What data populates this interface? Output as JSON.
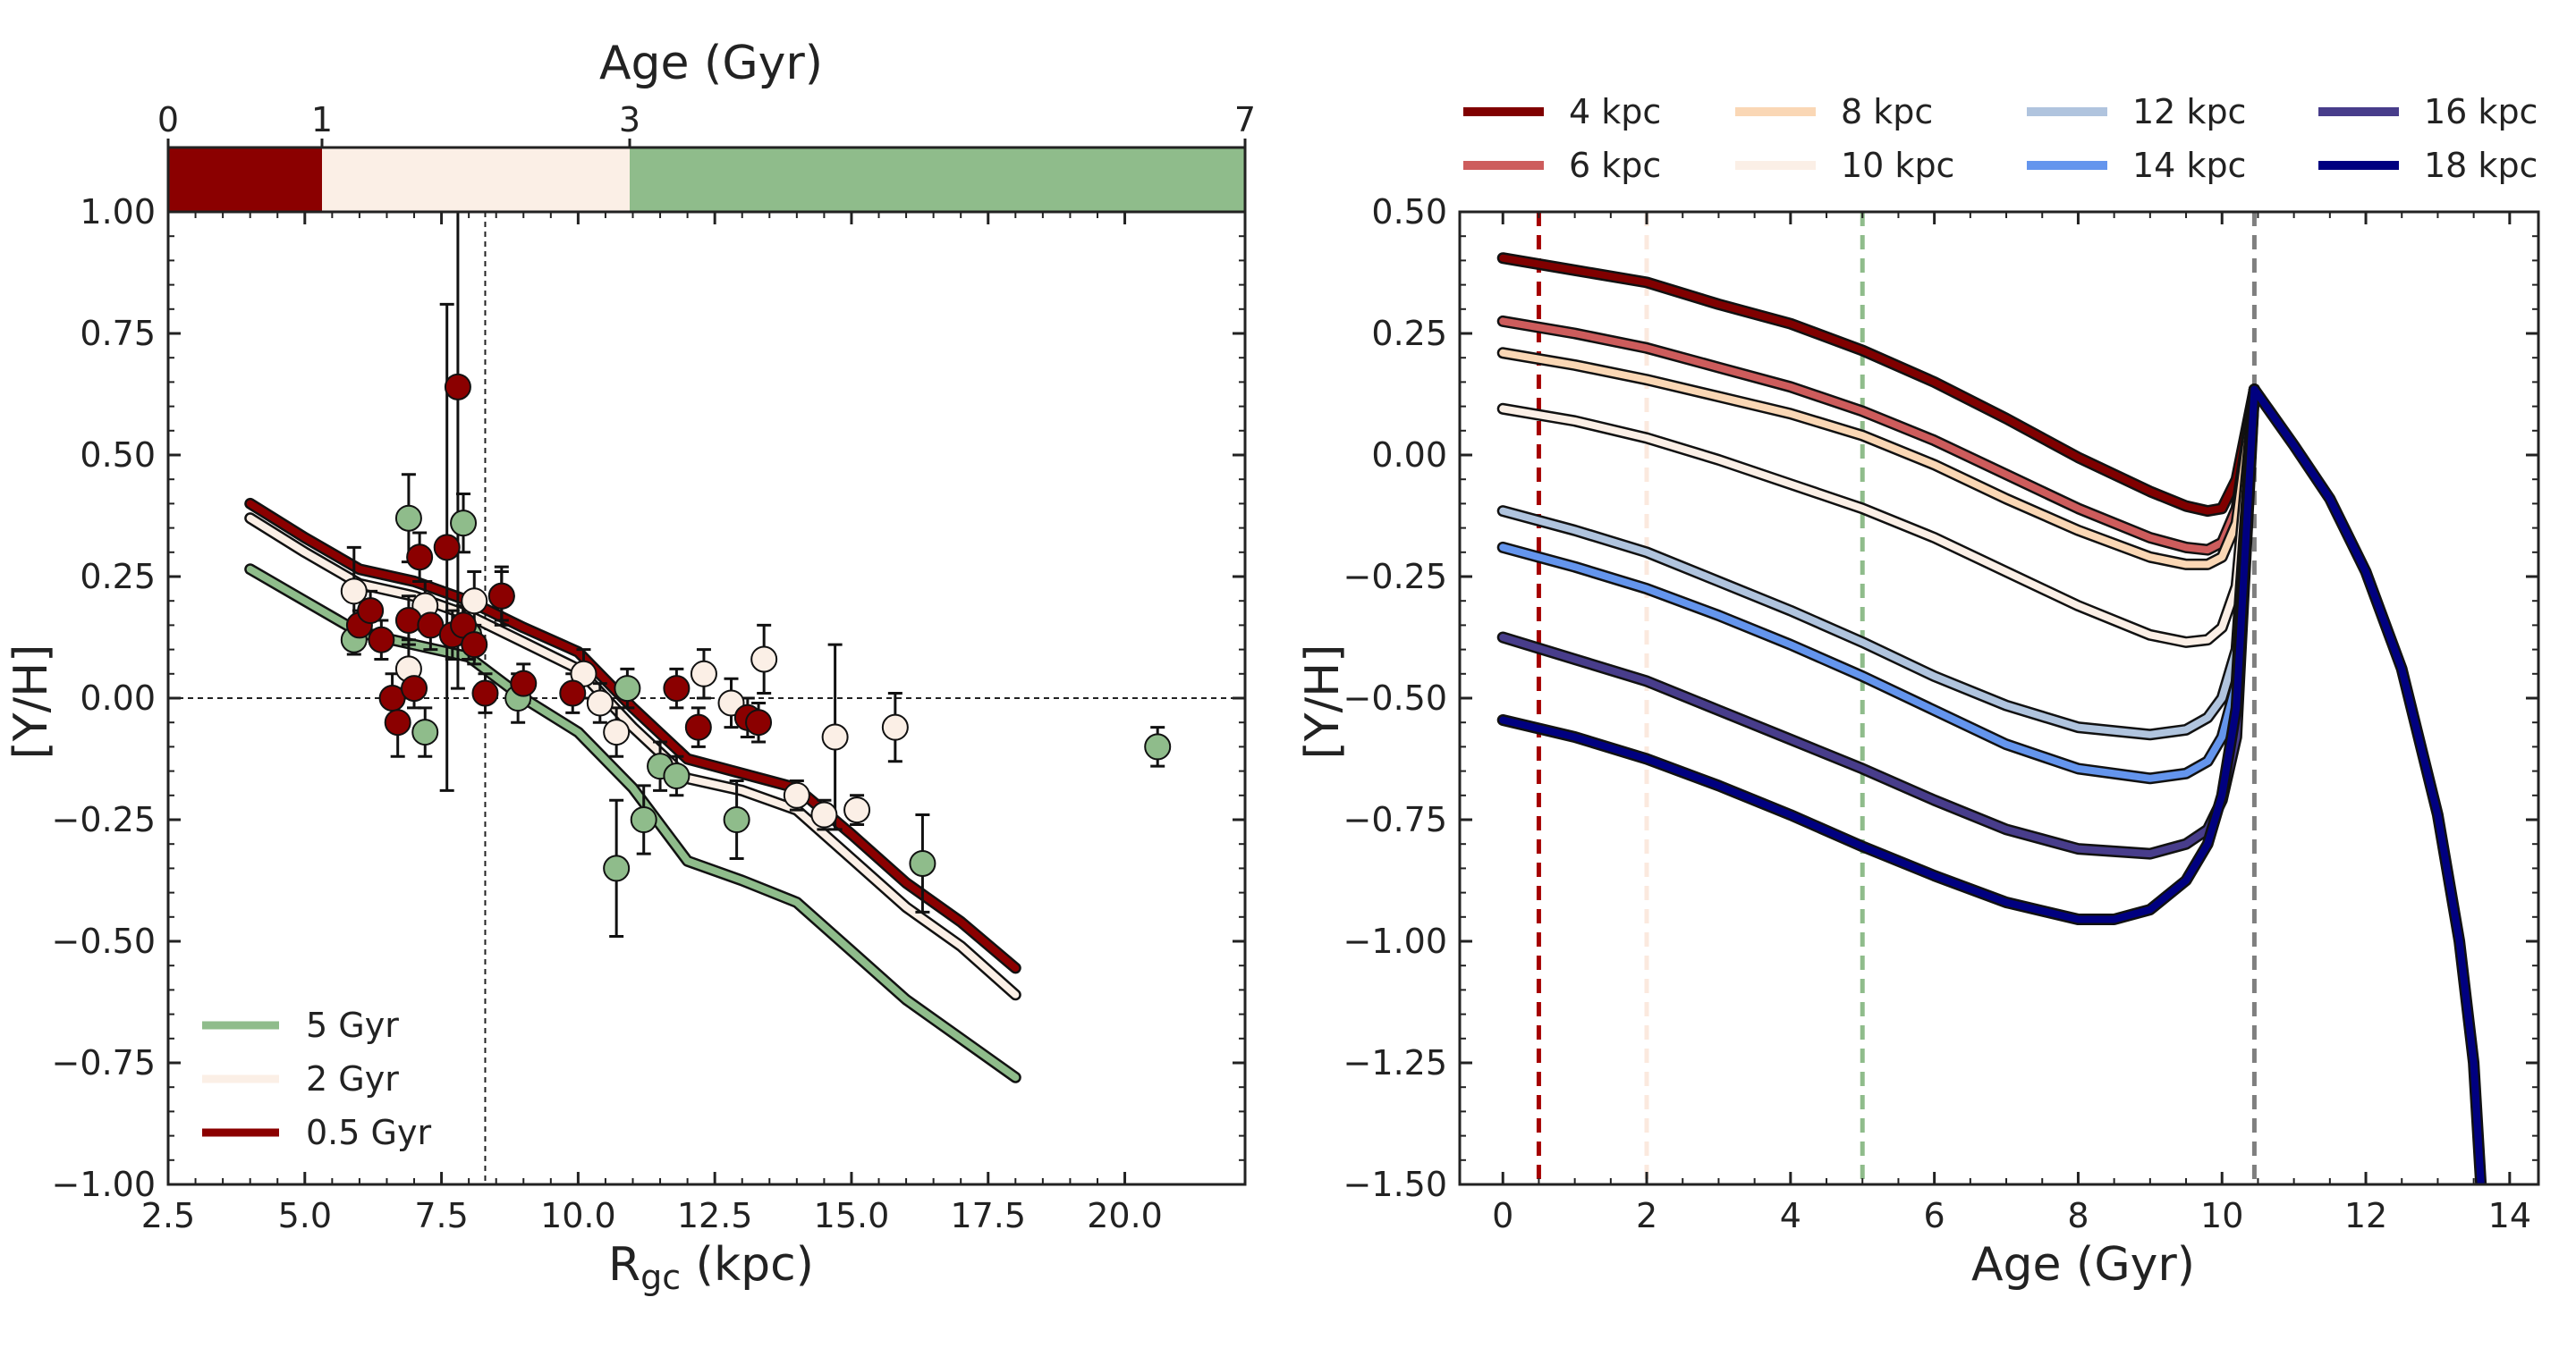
{
  "chart_data": [
    {
      "panel": "left",
      "type": "scatter",
      "xlabel_main": "R",
      "xlabel_sub": "gc",
      "xlabel_unit": " (kpc)",
      "ylabel": "[Y/H]",
      "xlim": [
        2.5,
        22.2
      ],
      "ylim": [
        -1.0,
        1.0
      ],
      "xticks": [
        2.5,
        5.0,
        7.5,
        10.0,
        12.5,
        15.0,
        17.5,
        20.0
      ],
      "xtick_labels": [
        "2.5",
        "5.0",
        "7.5",
        "10.0",
        "12.5",
        "15.0",
        "17.5",
        "20.0"
      ],
      "yticks": [
        -1.0,
        -0.75,
        -0.5,
        -0.25,
        0.0,
        0.25,
        0.5,
        0.75,
        1.0
      ],
      "ytick_labels": [
        "−1.00",
        "−0.75",
        "−0.50",
        "−0.25",
        "0.00",
        "0.25",
        "0.50",
        "0.75",
        "1.00"
      ],
      "reference_lines": {
        "y_zero": 0.0,
        "x_sun": 8.3
      },
      "age_bar": {
        "title": "Age (Gyr)",
        "range": [
          0,
          7
        ],
        "ticks": [
          0,
          1,
          3,
          7
        ],
        "tick_labels": [
          "0",
          "1",
          "3",
          "7"
        ],
        "segments": [
          {
            "from": 0,
            "to": 1,
            "color": "#8b0000"
          },
          {
            "from": 1,
            "to": 3,
            "color": "#fbefe6"
          },
          {
            "from": 3,
            "to": 7,
            "color": "#8fbc8b"
          }
        ]
      },
      "series": [
        {
          "name": "5 Gyr",
          "color": "#8fbc8b",
          "x": [
            4,
            5,
            6,
            7,
            8,
            9,
            10,
            11,
            12,
            13,
            14,
            15,
            16,
            17,
            18
          ],
          "y": [
            0.265,
            0.2,
            0.135,
            0.11,
            0.085,
            0.0,
            -0.07,
            -0.185,
            -0.335,
            -0.375,
            -0.42,
            -0.52,
            -0.62,
            -0.7,
            -0.78
          ]
        },
        {
          "name": "2 Gyr",
          "color": "#fbefe6",
          "x": [
            4,
            5,
            6,
            7,
            8,
            9,
            10,
            11,
            12,
            13,
            14,
            15,
            16,
            17,
            18
          ],
          "y": [
            0.37,
            0.3,
            0.235,
            0.21,
            0.17,
            0.115,
            0.06,
            -0.06,
            -0.165,
            -0.19,
            -0.23,
            -0.33,
            -0.43,
            -0.51,
            -0.61
          ]
        },
        {
          "name": "0.5 Gyr",
          "color": "#8b0000",
          "x": [
            4,
            5,
            6,
            7,
            8,
            9,
            10,
            11,
            12,
            13,
            14,
            15,
            16,
            17,
            18
          ],
          "y": [
            0.4,
            0.33,
            0.265,
            0.24,
            0.2,
            0.145,
            0.095,
            -0.02,
            -0.125,
            -0.155,
            -0.185,
            -0.28,
            -0.38,
            -0.46,
            -0.555
          ]
        }
      ],
      "points": [
        {
          "x": 5.9,
          "y": 0.22,
          "err": 0.09,
          "group": "young"
        },
        {
          "x": 6.9,
          "y": 0.06,
          "err": 0.06,
          "group": "young"
        },
        {
          "x": 7.2,
          "y": 0.19,
          "err": 0.05,
          "group": "young"
        },
        {
          "x": 8.1,
          "y": 0.2,
          "err": 0.06,
          "group": "young"
        },
        {
          "x": 8.6,
          "y": 0.21,
          "err": 0.06,
          "group": "young"
        },
        {
          "x": 10.1,
          "y": 0.05,
          "err": 0.05,
          "group": "young"
        },
        {
          "x": 10.4,
          "y": -0.01,
          "err": 0.04,
          "group": "young"
        },
        {
          "x": 10.7,
          "y": -0.07,
          "err": 0.05,
          "group": "young"
        },
        {
          "x": 12.3,
          "y": 0.05,
          "err": 0.05,
          "group": "young"
        },
        {
          "x": 12.8,
          "y": -0.01,
          "err": 0.05,
          "group": "young"
        },
        {
          "x": 13.4,
          "y": 0.08,
          "err": 0.07,
          "group": "young"
        },
        {
          "x": 14.0,
          "y": -0.2,
          "err": 0.03,
          "group": "young"
        },
        {
          "x": 14.5,
          "y": -0.24,
          "err": 0.03,
          "group": "young"
        },
        {
          "x": 14.7,
          "y": -0.08,
          "err": 0.19,
          "group": "young"
        },
        {
          "x": 15.1,
          "y": -0.23,
          "err": 0.03,
          "group": "young"
        },
        {
          "x": 15.8,
          "y": -0.06,
          "err": 0.07,
          "group": "young"
        },
        {
          "x": 5.9,
          "y": 0.12,
          "err": 0.03,
          "group": "old"
        },
        {
          "x": 6.9,
          "y": 0.37,
          "err": 0.09,
          "group": "old"
        },
        {
          "x": 7.2,
          "y": -0.07,
          "err": 0.05,
          "group": "old"
        },
        {
          "x": 7.9,
          "y": 0.36,
          "err": 0.06,
          "group": "old"
        },
        {
          "x": 8.0,
          "y": 0.13,
          "err": 0.05,
          "group": "old"
        },
        {
          "x": 8.9,
          "y": 0.0,
          "err": 0.05,
          "group": "old"
        },
        {
          "x": 10.9,
          "y": 0.02,
          "err": 0.04,
          "group": "old"
        },
        {
          "x": 10.7,
          "y": -0.35,
          "err": 0.14,
          "group": "old"
        },
        {
          "x": 11.2,
          "y": -0.25,
          "err": 0.07,
          "group": "old"
        },
        {
          "x": 11.5,
          "y": -0.14,
          "err": 0.05,
          "group": "old"
        },
        {
          "x": 11.8,
          "y": -0.16,
          "err": 0.04,
          "group": "old"
        },
        {
          "x": 12.9,
          "y": -0.25,
          "err": 0.08,
          "group": "old"
        },
        {
          "x": 16.3,
          "y": -0.34,
          "err": 0.1,
          "group": "old"
        },
        {
          "x": 20.6,
          "y": -0.1,
          "err": 0.04,
          "group": "old"
        },
        {
          "x": 6.0,
          "y": 0.15,
          "err": 0.03,
          "group": "veryyoung"
        },
        {
          "x": 6.2,
          "y": 0.18,
          "err": 0.04,
          "group": "veryyoung"
        },
        {
          "x": 6.4,
          "y": 0.12,
          "err": 0.04,
          "group": "veryyoung"
        },
        {
          "x": 6.6,
          "y": 0.0,
          "err": 0.05,
          "group": "veryyoung"
        },
        {
          "x": 6.7,
          "y": -0.05,
          "err": 0.07,
          "group": "veryyoung"
        },
        {
          "x": 6.9,
          "y": 0.16,
          "err": 0.05,
          "group": "veryyoung"
        },
        {
          "x": 7.0,
          "y": 0.02,
          "err": 0.04,
          "group": "veryyoung"
        },
        {
          "x": 7.1,
          "y": 0.29,
          "err": 0.05,
          "group": "veryyoung"
        },
        {
          "x": 7.3,
          "y": 0.15,
          "err": 0.05,
          "group": "veryyoung"
        },
        {
          "x": 7.6,
          "y": 0.31,
          "err": 0.5,
          "group": "veryyoung"
        },
        {
          "x": 7.7,
          "y": 0.13,
          "err": 0.05,
          "group": "veryyoung"
        },
        {
          "x": 7.8,
          "y": 0.64,
          "err": 0.62,
          "group": "veryyoung"
        },
        {
          "x": 7.9,
          "y": 0.15,
          "err": 0.04,
          "group": "veryyoung"
        },
        {
          "x": 8.1,
          "y": 0.11,
          "err": 0.04,
          "group": "veryyoung"
        },
        {
          "x": 8.3,
          "y": 0.01,
          "err": 0.04,
          "group": "veryyoung"
        },
        {
          "x": 8.6,
          "y": 0.21,
          "err": 0.05,
          "group": "veryyoung"
        },
        {
          "x": 9.0,
          "y": 0.03,
          "err": 0.04,
          "group": "veryyoung"
        },
        {
          "x": 9.9,
          "y": 0.01,
          "err": 0.04,
          "group": "veryyoung"
        },
        {
          "x": 11.8,
          "y": 0.02,
          "err": 0.04,
          "group": "veryyoung"
        },
        {
          "x": 12.2,
          "y": -0.06,
          "err": 0.04,
          "group": "veryyoung"
        },
        {
          "x": 13.1,
          "y": -0.04,
          "err": 0.04,
          "group": "veryyoung"
        },
        {
          "x": 13.3,
          "y": -0.05,
          "err": 0.04,
          "group": "veryyoung"
        }
      ],
      "point_colors": {
        "veryyoung": "#8b0000",
        "young": "#fbefe6",
        "old": "#8fbc8b"
      },
      "legend": [
        {
          "label": "5 Gyr",
          "color": "#8fbc8b"
        },
        {
          "label": "2 Gyr",
          "color": "#fbefe6"
        },
        {
          "label": "0.5 Gyr",
          "color": "#8b0000"
        }
      ],
      "legend_position": "lower-left"
    },
    {
      "panel": "right",
      "type": "line",
      "xlabel": "Age (Gyr)",
      "ylabel": "[Y/H]",
      "xlim": [
        -0.6,
        14.4
      ],
      "ylim": [
        -1.5,
        0.5
      ],
      "xticks": [
        0,
        2,
        4,
        6,
        8,
        10,
        12,
        14
      ],
      "xtick_labels": [
        "0",
        "2",
        "4",
        "6",
        "8",
        "10",
        "12",
        "14"
      ],
      "yticks": [
        -1.5,
        -1.25,
        -1.0,
        -0.75,
        -0.5,
        -0.25,
        0.0,
        0.25,
        0.5
      ],
      "ytick_labels": [
        "−1.50",
        "−1.25",
        "−1.00",
        "−0.75",
        "−0.50",
        "−0.25",
        "0.00",
        "0.25",
        "0.50"
      ],
      "vertical_lines": [
        {
          "x": 0.5,
          "color": "#a50000"
        },
        {
          "x": 2.0,
          "color": "#fbe9de"
        },
        {
          "x": 5.0,
          "color": "#8fbc8b"
        },
        {
          "x": 10.45,
          "color": "#7f7f7f"
        }
      ],
      "series": [
        {
          "name": "4 kpc",
          "color": "#800000",
          "x": [
            0,
            1,
            2,
            3,
            4,
            5,
            6,
            7,
            8,
            9,
            9.5,
            9.8,
            10.0,
            10.2,
            10.45
          ],
          "y": [
            0.405,
            0.38,
            0.355,
            0.31,
            0.27,
            0.215,
            0.15,
            0.075,
            -0.005,
            -0.075,
            -0.105,
            -0.115,
            -0.11,
            -0.05,
            0.135
          ]
        },
        {
          "name": "6 kpc",
          "color": "#cd5c5c",
          "x": [
            0,
            1,
            2,
            3,
            4,
            5,
            6,
            7,
            8,
            9,
            9.5,
            9.8,
            10.0,
            10.2,
            10.45
          ],
          "y": [
            0.275,
            0.25,
            0.22,
            0.18,
            0.14,
            0.09,
            0.03,
            -0.04,
            -0.11,
            -0.17,
            -0.19,
            -0.195,
            -0.18,
            -0.11,
            0.135
          ]
        },
        {
          "name": "8 kpc",
          "color": "#fad7b5",
          "x": [
            0,
            1,
            2,
            3,
            4,
            5,
            6,
            7,
            8,
            9,
            9.5,
            9.8,
            10.0,
            10.2,
            10.45
          ],
          "y": [
            0.21,
            0.185,
            0.155,
            0.12,
            0.085,
            0.04,
            -0.02,
            -0.09,
            -0.155,
            -0.21,
            -0.225,
            -0.225,
            -0.21,
            -0.14,
            0.135
          ]
        },
        {
          "name": "10 kpc",
          "color": "#fbefe6",
          "x": [
            0,
            1,
            2,
            3,
            4,
            5,
            6,
            7,
            8,
            9,
            9.5,
            9.8,
            10.0,
            10.2,
            10.45
          ],
          "y": [
            0.095,
            0.07,
            0.035,
            -0.01,
            -0.06,
            -0.11,
            -0.17,
            -0.24,
            -0.31,
            -0.37,
            -0.385,
            -0.38,
            -0.355,
            -0.27,
            0.135
          ]
        },
        {
          "name": "12 kpc",
          "color": "#b0c4de",
          "x": [
            0,
            1,
            2,
            3,
            4,
            5,
            6,
            7,
            8,
            9,
            9.5,
            9.8,
            10.0,
            10.2,
            10.45
          ],
          "y": [
            -0.115,
            -0.155,
            -0.2,
            -0.26,
            -0.32,
            -0.385,
            -0.455,
            -0.515,
            -0.56,
            -0.575,
            -0.565,
            -0.54,
            -0.5,
            -0.4,
            0.135
          ]
        },
        {
          "name": "14 kpc",
          "color": "#6495ed",
          "x": [
            0,
            1,
            2,
            3,
            4,
            5,
            6,
            7,
            8,
            9,
            9.5,
            9.8,
            10.0,
            10.2,
            10.45
          ],
          "y": [
            -0.19,
            -0.23,
            -0.275,
            -0.33,
            -0.39,
            -0.455,
            -0.525,
            -0.595,
            -0.645,
            -0.665,
            -0.655,
            -0.63,
            -0.58,
            -0.47,
            0.135
          ]
        },
        {
          "name": "16 kpc",
          "color": "#483d8b",
          "x": [
            0,
            1,
            2,
            3,
            4,
            5,
            6,
            7,
            8,
            9,
            9.5,
            9.8,
            10.0,
            10.2,
            10.45
          ],
          "y": [
            -0.375,
            -0.42,
            -0.465,
            -0.525,
            -0.585,
            -0.645,
            -0.71,
            -0.77,
            -0.81,
            -0.82,
            -0.8,
            -0.77,
            -0.71,
            -0.58,
            0.135
          ]
        },
        {
          "name": "18 kpc",
          "color": "#000080",
          "x": [
            0,
            1,
            2,
            3,
            4,
            5,
            6,
            7,
            8,
            8.5,
            9,
            9.5,
            9.8,
            10.0,
            10.2,
            10.45,
            11.0,
            11.5,
            12.0,
            12.5,
            13.0,
            13.3,
            13.5,
            13.6
          ],
          "y": [
            -0.545,
            -0.58,
            -0.625,
            -0.68,
            -0.74,
            -0.805,
            -0.865,
            -0.92,
            -0.955,
            -0.955,
            -0.935,
            -0.875,
            -0.8,
            -0.7,
            -0.52,
            0.135,
            0.02,
            -0.09,
            -0.24,
            -0.44,
            -0.74,
            -1.0,
            -1.25,
            -1.5
          ]
        }
      ],
      "legend": [
        {
          "label": "4 kpc",
          "color": "#800000"
        },
        {
          "label": "8 kpc",
          "color": "#fad7b5"
        },
        {
          "label": "12 kpc",
          "color": "#b0c4de"
        },
        {
          "label": "16 kpc",
          "color": "#483d8b"
        },
        {
          "label": "6 kpc",
          "color": "#cd5c5c"
        },
        {
          "label": "10 kpc",
          "color": "#fbefe6"
        },
        {
          "label": "14 kpc",
          "color": "#6495ed"
        },
        {
          "label": "18 kpc",
          "color": "#000080"
        }
      ],
      "legend_position": "top, above plot, 4 columns"
    }
  ]
}
